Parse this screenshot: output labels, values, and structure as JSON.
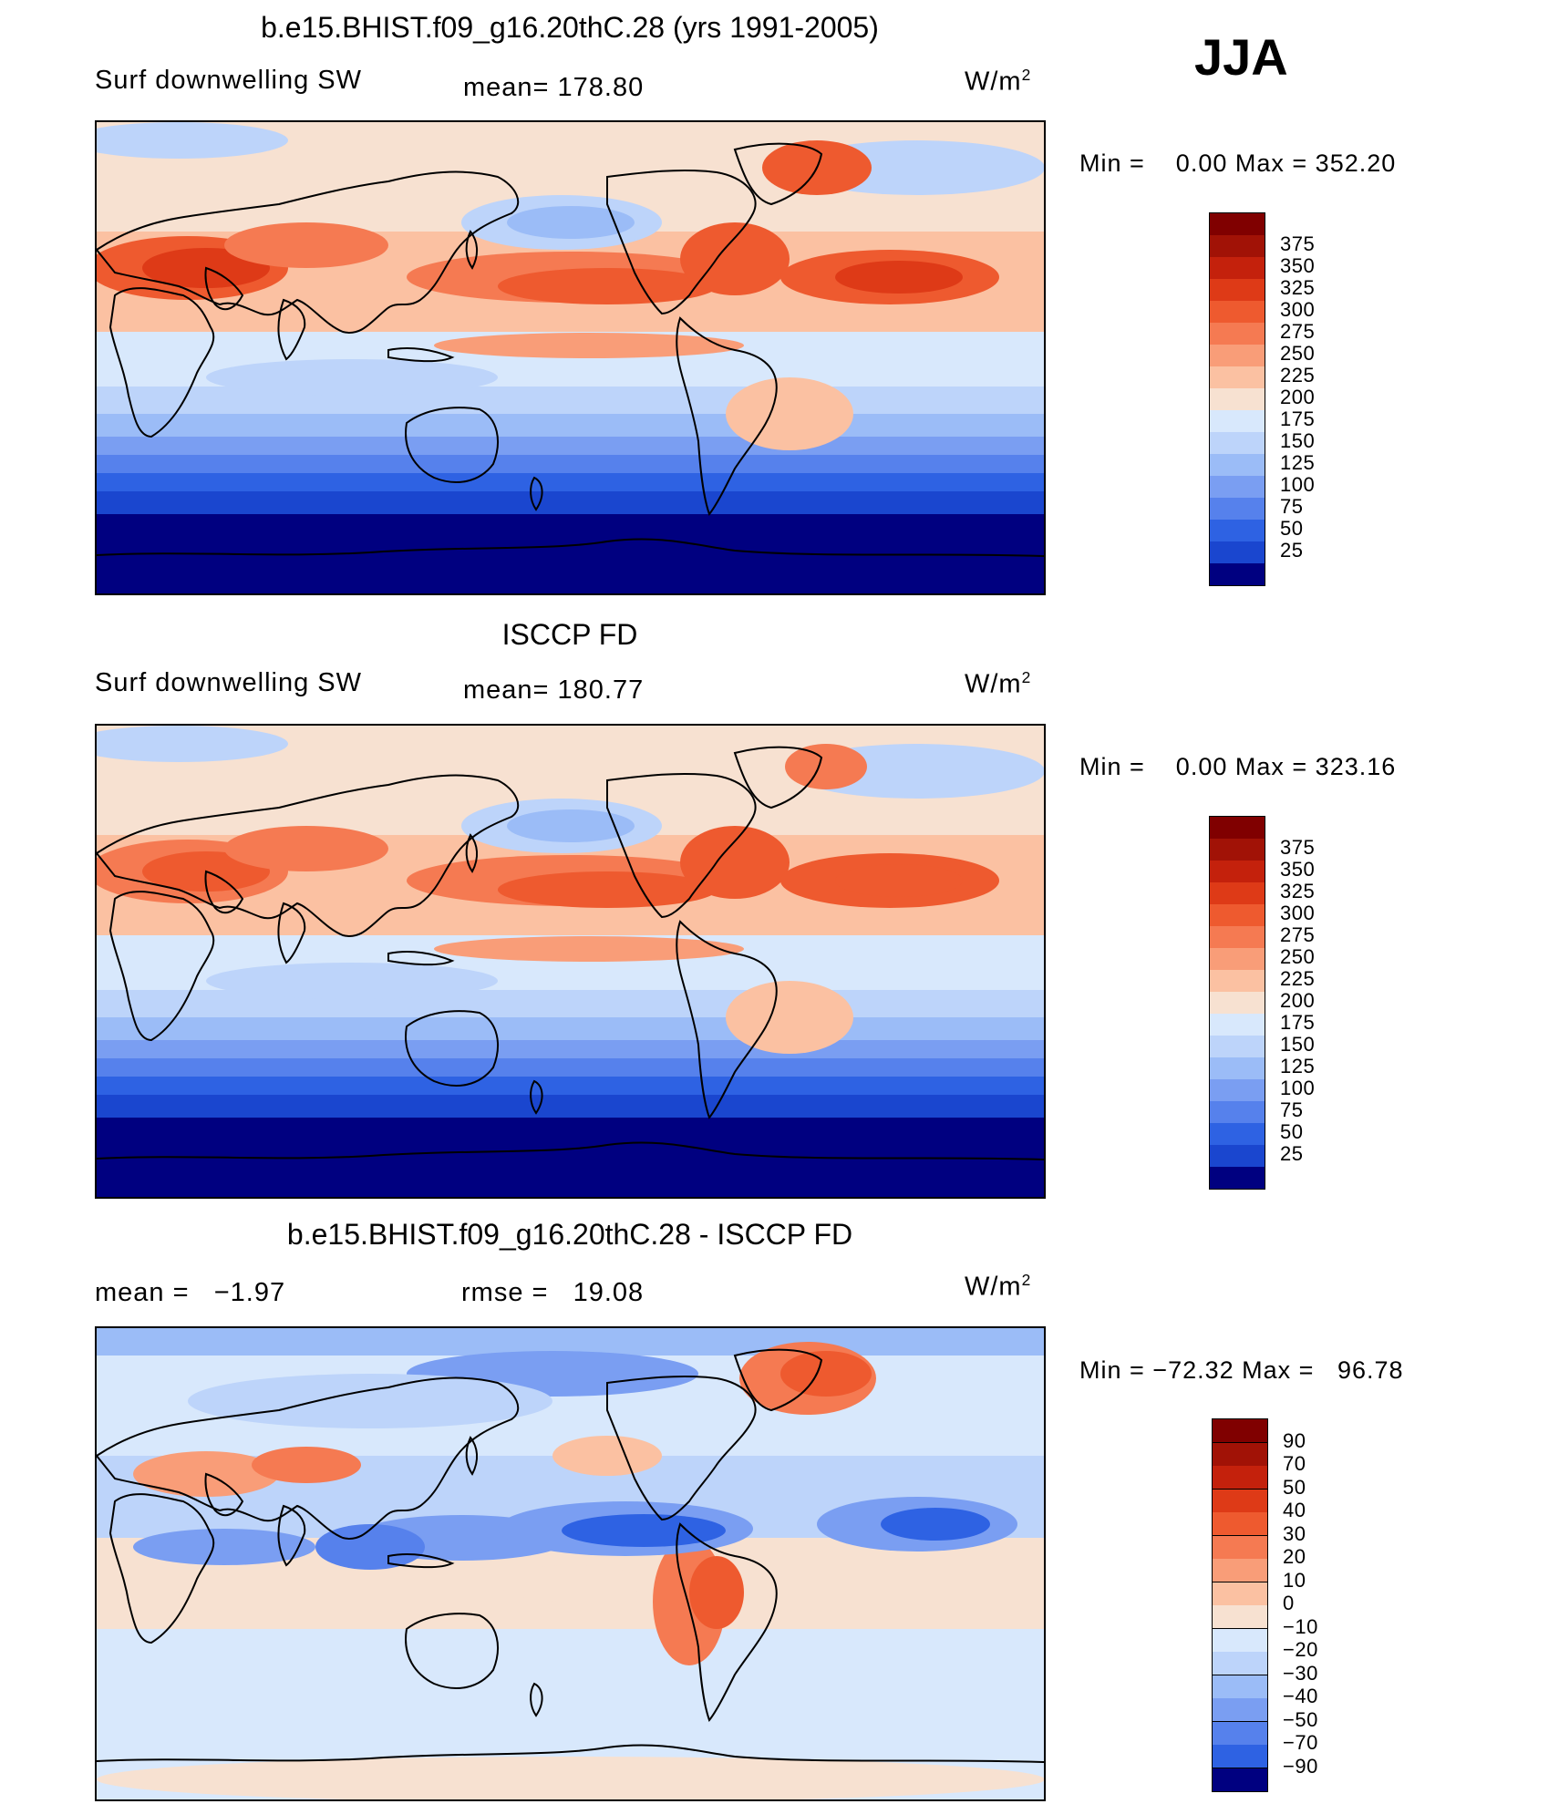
{
  "season": "JJA",
  "units_label": "W/m",
  "units_exp": "2",
  "colors": {
    "positive": [
      "#f7e1d1",
      "#fbc1a2",
      "#f99d78",
      "#f57a52",
      "#ee5a2f",
      "#de3a17",
      "#c4210c",
      "#a11206",
      "#800000"
    ],
    "negative": [
      "#d8e8fc",
      "#bdd4fa",
      "#9bbcf7",
      "#7a9ef2",
      "#5681ec",
      "#2e62e3",
      "#1a46cf",
      "#0e2fac",
      "#061f8a",
      "#000080"
    ],
    "ocean_low": "#000080",
    "coast": "#000000"
  },
  "panels": [
    {
      "title": "b.e15.BHIST.f09_g16.20thC.28 (yrs 1991-2005)",
      "left_label": "Surf downwelling SW",
      "mid_label": "mean= 178.80",
      "right_label": "",
      "min_label": "Min =",
      "min_value": "0.00",
      "max_label": "Max =",
      "max_value": "352.20"
    },
    {
      "title": "ISCCP FD",
      "left_label": "Surf downwelling SW",
      "mid_label": "mean= 180.77",
      "right_label": "",
      "min_label": "Min =",
      "min_value": "0.00",
      "max_label": "Max =",
      "max_value": "323.16"
    },
    {
      "title": "b.e15.BHIST.f09_g16.20thC.28 - ISCCP FD",
      "left_label": "mean =   −1.97",
      "mid_label": "rmse =   19.08",
      "right_label": "",
      "min_label": "Min =",
      "min_value": "−72.32",
      "max_label": "Max =",
      "max_value": "96.78"
    }
  ],
  "chart_data": [
    {
      "type": "heatmap",
      "title": "b.e15.BHIST.f09_g16.20thC.28 (yrs 1991-2005)",
      "variable": "Surf downwelling SW",
      "units": "W/m2",
      "mean": 178.8,
      "min": 0.0,
      "max": 352.2,
      "colorbar_levels": [
        375,
        350,
        325,
        300,
        275,
        250,
        225,
        200,
        175,
        150,
        125,
        100,
        75,
        50,
        25
      ],
      "colorbar_colors": [
        "#800000",
        "#a11206",
        "#c4210c",
        "#de3a17",
        "#ee5a2f",
        "#f57a52",
        "#f99d78",
        "#fbc1a2",
        "#f7e1d1",
        "#d8e8fc",
        "#bdd4fa",
        "#9bbcf7",
        "#7a9ef2",
        "#5681ec",
        "#2e62e3",
        "#1a46cf",
        "#000080"
      ]
    },
    {
      "type": "heatmap",
      "title": "ISCCP FD",
      "variable": "Surf downwelling SW",
      "units": "W/m2",
      "mean": 180.77,
      "min": 0.0,
      "max": 323.16,
      "colorbar_levels": [
        375,
        350,
        325,
        300,
        275,
        250,
        225,
        200,
        175,
        150,
        125,
        100,
        75,
        50,
        25
      ],
      "colorbar_colors": [
        "#800000",
        "#a11206",
        "#c4210c",
        "#de3a17",
        "#ee5a2f",
        "#f57a52",
        "#f99d78",
        "#fbc1a2",
        "#f7e1d1",
        "#d8e8fc",
        "#bdd4fa",
        "#9bbcf7",
        "#7a9ef2",
        "#5681ec",
        "#2e62e3",
        "#1a46cf",
        "#000080"
      ]
    },
    {
      "type": "heatmap",
      "title": "b.e15.BHIST.f09_g16.20thC.28 - ISCCP FD",
      "units": "W/m2",
      "mean": -1.97,
      "rmse": 19.08,
      "min": -72.32,
      "max": 96.78,
      "colorbar_levels": [
        90,
        70,
        50,
        40,
        30,
        20,
        10,
        0,
        -10,
        -20,
        -30,
        -40,
        -50,
        -70,
        -90
      ],
      "colorbar_colors": [
        "#800000",
        "#a11206",
        "#c4210c",
        "#de3a17",
        "#ee5a2f",
        "#f57a52",
        "#f99d78",
        "#fbc1a2",
        "#f7e1d1",
        "#d8e8fc",
        "#bdd4fa",
        "#9bbcf7",
        "#7a9ef2",
        "#5681ec",
        "#2e62e3",
        "#000080"
      ]
    }
  ]
}
